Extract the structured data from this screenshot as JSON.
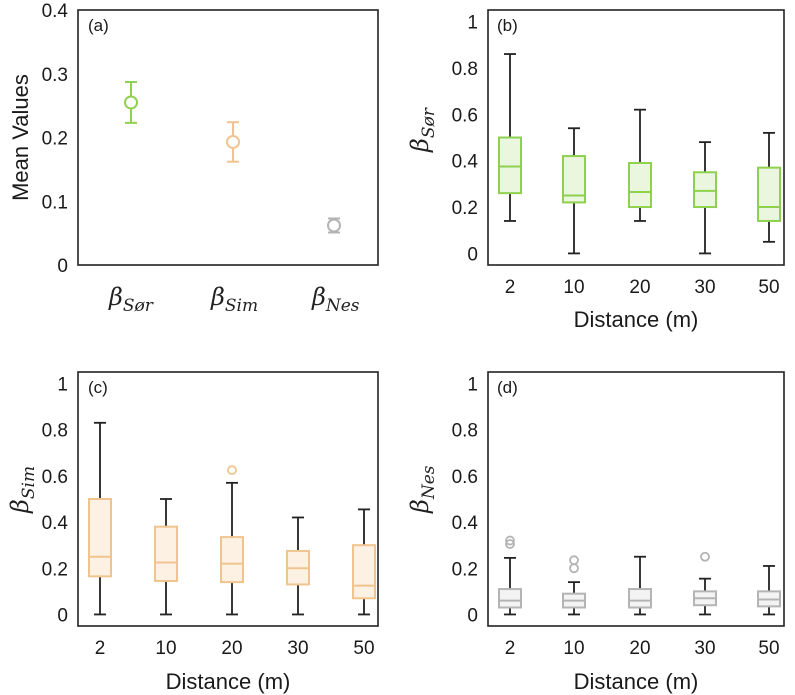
{
  "chart_data": [
    {
      "id": "a",
      "type": "errorbar",
      "panel_label": "(a)",
      "ylabel": "Mean Values",
      "ylim": [
        0,
        0.4
      ],
      "yticks": [
        "0",
        "0.1",
        "0.2",
        "0.3",
        "0.4"
      ],
      "categories": [
        {
          "beta": "β",
          "sub": "Sør"
        },
        {
          "beta": "β",
          "sub": "Sim"
        },
        {
          "beta": "β",
          "sub": "Nes"
        }
      ],
      "points": [
        {
          "mean": 0.255,
          "low": 0.223,
          "high": 0.287,
          "color": "#8fd14f"
        },
        {
          "mean": 0.193,
          "low": 0.162,
          "high": 0.224,
          "color": "#f0c48e"
        },
        {
          "mean": 0.062,
          "low": 0.051,
          "high": 0.073,
          "color": "#b4b4b4"
        }
      ]
    },
    {
      "id": "b",
      "type": "box",
      "panel_label": "(b)",
      "ylabel_beta": "β",
      "ylabel_sub": "Sør",
      "xlabel": "Distance (m)",
      "ylim": [
        -0.05,
        1.05
      ],
      "yticks": [
        "0",
        "0.2",
        "0.4",
        "0.6",
        "0.8",
        "1"
      ],
      "categories": [
        "2",
        "10",
        "20",
        "30",
        "50"
      ],
      "color": "#8fd14f",
      "fill": "#eaf6dd",
      "boxes": [
        {
          "min": 0.14,
          "q1": 0.26,
          "median": 0.375,
          "q3": 0.5,
          "max": 0.86,
          "outliers": []
        },
        {
          "min": 0.0,
          "q1": 0.22,
          "median": 0.25,
          "q3": 0.42,
          "max": 0.54,
          "outliers": []
        },
        {
          "min": 0.14,
          "q1": 0.2,
          "median": 0.265,
          "q3": 0.39,
          "max": 0.62,
          "outliers": []
        },
        {
          "min": 0.0,
          "q1": 0.2,
          "median": 0.27,
          "q3": 0.35,
          "max": 0.48,
          "outliers": []
        },
        {
          "min": 0.05,
          "q1": 0.14,
          "median": 0.2,
          "q3": 0.37,
          "max": 0.52,
          "outliers": []
        }
      ]
    },
    {
      "id": "c",
      "type": "box",
      "panel_label": "(c)",
      "ylabel_beta": "β",
      "ylabel_sub": "Sim",
      "xlabel": "Distance (m)",
      "ylim": [
        -0.05,
        1.05
      ],
      "yticks": [
        "0",
        "0.2",
        "0.4",
        "0.6",
        "0.8",
        "1"
      ],
      "categories": [
        "2",
        "10",
        "20",
        "30",
        "50"
      ],
      "color": "#f0c48e",
      "fill": "#fdf1e4",
      "boxes": [
        {
          "min": 0.0,
          "q1": 0.165,
          "median": 0.25,
          "q3": 0.5,
          "max": 0.83,
          "outliers": []
        },
        {
          "min": 0.0,
          "q1": 0.145,
          "median": 0.225,
          "q3": 0.38,
          "max": 0.5,
          "outliers": []
        },
        {
          "min": 0.0,
          "q1": 0.14,
          "median": 0.22,
          "q3": 0.335,
          "max": 0.57,
          "outliers": [
            0.625
          ]
        },
        {
          "min": 0.0,
          "q1": 0.13,
          "median": 0.2,
          "q3": 0.275,
          "max": 0.42,
          "outliers": []
        },
        {
          "min": 0.0,
          "q1": 0.07,
          "median": 0.125,
          "q3": 0.3,
          "max": 0.455,
          "outliers": []
        }
      ]
    },
    {
      "id": "d",
      "type": "box",
      "panel_label": "(d)",
      "ylabel_beta": "β",
      "ylabel_sub": "Nes",
      "xlabel": "Distance (m)",
      "ylim": [
        -0.05,
        1.05
      ],
      "yticks": [
        "0",
        "0.2",
        "0.4",
        "0.6",
        "0.8",
        "1"
      ],
      "categories": [
        "2",
        "10",
        "20",
        "30",
        "50"
      ],
      "color": "#b4b4b4",
      "fill": "#f3f3f3",
      "boxes": [
        {
          "min": 0.0,
          "q1": 0.03,
          "median": 0.06,
          "q3": 0.11,
          "max": 0.245,
          "outliers": [
            0.305,
            0.32
          ]
        },
        {
          "min": 0.0,
          "q1": 0.03,
          "median": 0.06,
          "q3": 0.09,
          "max": 0.14,
          "outliers": [
            0.2,
            0.235
          ]
        },
        {
          "min": 0.0,
          "q1": 0.03,
          "median": 0.06,
          "q3": 0.11,
          "max": 0.25,
          "outliers": []
        },
        {
          "min": 0.0,
          "q1": 0.04,
          "median": 0.07,
          "q3": 0.1,
          "max": 0.155,
          "outliers": [
            0.25
          ]
        },
        {
          "min": 0.0,
          "q1": 0.035,
          "median": 0.065,
          "q3": 0.1,
          "max": 0.21,
          "outliers": []
        }
      ]
    }
  ]
}
